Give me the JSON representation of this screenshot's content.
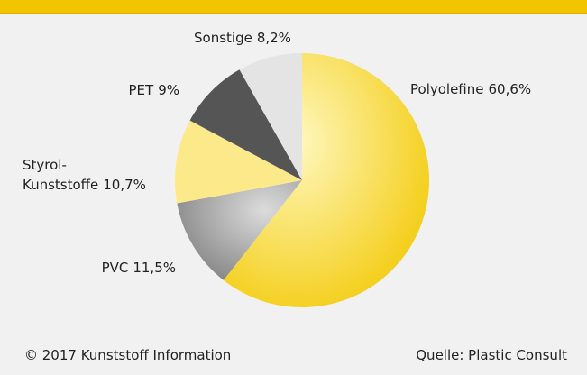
{
  "chart_data": {
    "type": "pie",
    "categories": [
      "Polyolefine",
      "PVC",
      "Styrol-\nKunststoffe",
      "PET",
      "Sonstige"
    ],
    "values": [
      60.6,
      11.5,
      10.7,
      9,
      8.2
    ],
    "value_labels": [
      "60,6%",
      "11,5%",
      "10,7%",
      "9%",
      "8,2%"
    ],
    "colors": [
      "#f6d000",
      "#9b9b9b",
      "#fbe98a",
      "#555555",
      "#e4e4e4"
    ],
    "footer_left": "© 2017 Kunststoff Information",
    "footer_right": "Quelle: Plastic Consult"
  }
}
